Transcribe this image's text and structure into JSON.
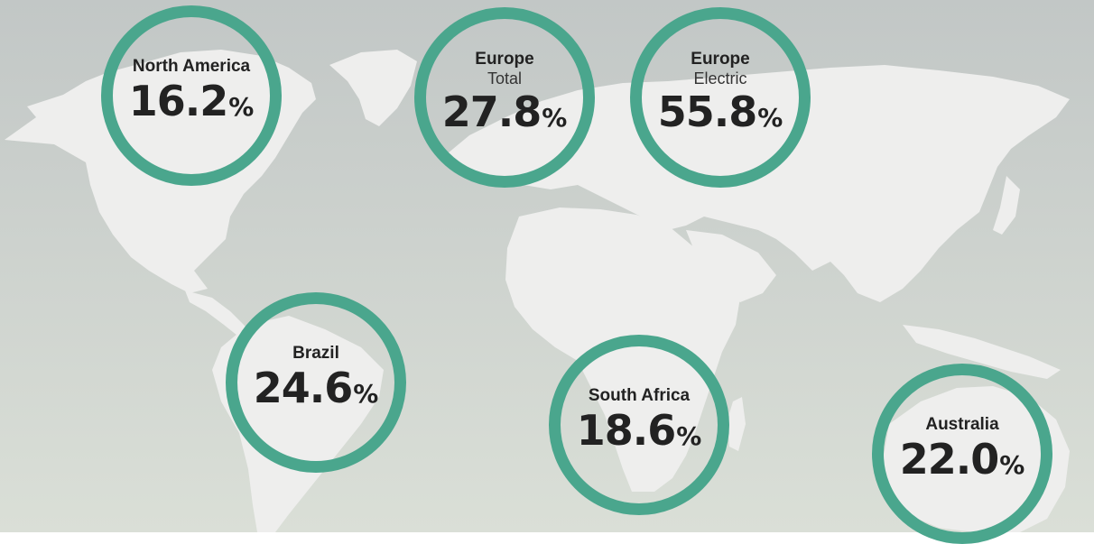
{
  "colors": {
    "ring": "#4aa68d",
    "land": "#eeeeed",
    "ocean_top": "#c3c8c7",
    "ocean_bottom": "#d9ddd6",
    "text": "#222222"
  },
  "badges": [
    {
      "id": "north-america",
      "region": "North America",
      "sub": "",
      "value": "16.2",
      "unit": "%"
    },
    {
      "id": "europe-total",
      "region": "Europe",
      "sub": "Total",
      "value": "27.8",
      "unit": "%"
    },
    {
      "id": "europe-electric",
      "region": "Europe",
      "sub": "Electric",
      "value": "55.8",
      "unit": "%"
    },
    {
      "id": "brazil",
      "region": "Brazil",
      "sub": "",
      "value": "24.6",
      "unit": "%"
    },
    {
      "id": "south-africa",
      "region": "South Africa",
      "sub": "",
      "value": "18.6",
      "unit": "%"
    },
    {
      "id": "australia",
      "region": "Australia",
      "sub": "",
      "value": "22.0",
      "unit": "%"
    }
  ]
}
